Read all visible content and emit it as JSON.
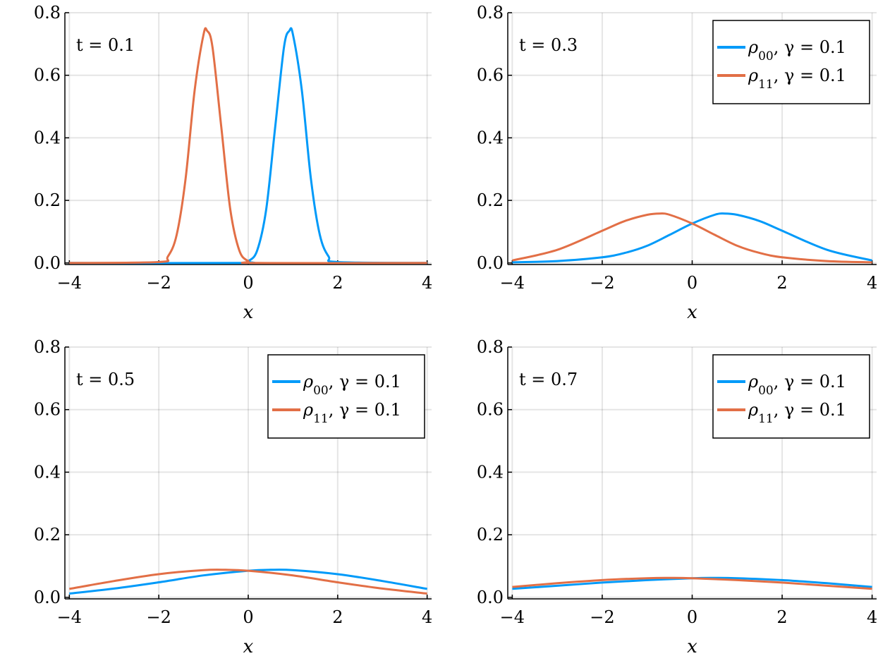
{
  "colors": {
    "rho00": "#009af9",
    "rho11": "#e26f46"
  },
  "chart_data": [
    {
      "type": "line",
      "annotation": "t = 0.1",
      "xlabel": "x",
      "xlim": [
        -4.1,
        4.1
      ],
      "ylim": [
        -0.005,
        0.8
      ],
      "xticks": [
        -4,
        -2,
        0,
        2,
        4
      ],
      "yticks": [
        0.0,
        0.2,
        0.4,
        0.6,
        0.8
      ],
      "xtick_labels": [
        "−4",
        "−2",
        "0",
        "2",
        "4"
      ],
      "ytick_labels": [
        "0.0",
        "0.2",
        "0.4",
        "0.6",
        "0.8"
      ],
      "grid": true,
      "legend": null,
      "series": [
        {
          "color": "#009af9",
          "x": [
            -4.0,
            -0.2,
            0.0,
            0.2,
            0.4,
            0.6,
            0.8,
            0.92,
            1.0,
            1.2,
            1.4,
            1.6,
            1.8,
            2.0,
            4.0
          ],
          "y": [
            0.0,
            0.0,
            0.006,
            0.04,
            0.17,
            0.43,
            0.69,
            0.742,
            0.73,
            0.55,
            0.27,
            0.09,
            0.02,
            0.003,
            0.0
          ]
        },
        {
          "color": "#e26f46",
          "x": [
            -4.0,
            -2.0,
            -1.8,
            -1.6,
            -1.4,
            -1.2,
            -1.0,
            -0.92,
            -0.8,
            -0.6,
            -0.4,
            -0.2,
            0.0,
            0.2,
            4.0
          ],
          "y": [
            0.0,
            0.003,
            0.02,
            0.09,
            0.27,
            0.55,
            0.73,
            0.742,
            0.69,
            0.43,
            0.17,
            0.04,
            0.006,
            0.0,
            0.0
          ]
        }
      ]
    },
    {
      "type": "line",
      "annotation": "t = 0.3",
      "xlabel": "x",
      "xlim": [
        -4.1,
        4.1
      ],
      "ylim": [
        -0.005,
        0.8
      ],
      "xticks": [
        -4,
        -2,
        0,
        2,
        4
      ],
      "yticks": [
        0.0,
        0.2,
        0.4,
        0.6,
        0.8
      ],
      "xtick_labels": [
        "−4",
        "−2",
        "0",
        "2",
        "4"
      ],
      "ytick_labels": [
        "0.0",
        "0.2",
        "0.4",
        "0.6",
        "0.8"
      ],
      "grid": true,
      "legend": "top-right",
      "series": [
        {
          "name": "ρ00, γ = 0.1",
          "color": "#009af9",
          "x": [
            -4.0,
            -3.0,
            -2.0,
            -1.5,
            -1.0,
            -0.5,
            0.0,
            0.5,
            0.72,
            1.0,
            1.5,
            2.0,
            3.0,
            4.0
          ],
          "y": [
            0.002,
            0.006,
            0.018,
            0.032,
            0.055,
            0.09,
            0.126,
            0.154,
            0.158,
            0.154,
            0.134,
            0.103,
            0.042,
            0.008
          ]
        },
        {
          "name": "ρ11, γ = 0.1",
          "color": "#e26f46",
          "x": [
            -4.0,
            -3.0,
            -2.0,
            -1.5,
            -1.0,
            -0.72,
            -0.5,
            0.0,
            0.5,
            1.0,
            1.5,
            2.0,
            3.0,
            4.0
          ],
          "y": [
            0.008,
            0.042,
            0.103,
            0.134,
            0.154,
            0.158,
            0.154,
            0.126,
            0.09,
            0.055,
            0.032,
            0.018,
            0.006,
            0.002
          ]
        }
      ]
    },
    {
      "type": "line",
      "annotation": "t = 0.5",
      "xlabel": "x",
      "xlim": [
        -4.1,
        4.1
      ],
      "ylim": [
        -0.005,
        0.8
      ],
      "xticks": [
        -4,
        -2,
        0,
        2,
        4
      ],
      "yticks": [
        0.0,
        0.2,
        0.4,
        0.6,
        0.8
      ],
      "xtick_labels": [
        "−4",
        "−2",
        "0",
        "2",
        "4"
      ],
      "ytick_labels": [
        "0.0",
        "0.2",
        "0.4",
        "0.6",
        "0.8"
      ],
      "grid": true,
      "legend": "top-right",
      "series": [
        {
          "name": "ρ00, γ = 0.1",
          "color": "#009af9",
          "x": [
            -4.0,
            -3.0,
            -2.0,
            -1.0,
            0.0,
            0.5,
            1.0,
            2.0,
            3.0,
            4.0
          ],
          "y": [
            0.012,
            0.028,
            0.048,
            0.07,
            0.085,
            0.088,
            0.087,
            0.074,
            0.052,
            0.027
          ]
        },
        {
          "name": "ρ11, γ = 0.1",
          "color": "#e26f46",
          "x": [
            -4.0,
            -3.0,
            -2.0,
            -1.0,
            -0.5,
            0.0,
            1.0,
            2.0,
            3.0,
            4.0
          ],
          "y": [
            0.027,
            0.052,
            0.074,
            0.087,
            0.088,
            0.085,
            0.07,
            0.048,
            0.028,
            0.012
          ]
        }
      ]
    },
    {
      "type": "line",
      "annotation": "t = 0.7",
      "xlabel": "x",
      "xlim": [
        -4.1,
        4.1
      ],
      "ylim": [
        -0.005,
        0.8
      ],
      "xticks": [
        -4,
        -2,
        0,
        2,
        4
      ],
      "yticks": [
        0.0,
        0.2,
        0.4,
        0.6,
        0.8
      ],
      "xtick_labels": [
        "−4",
        "−2",
        "0",
        "2",
        "4"
      ],
      "ytick_labels": [
        "0.0",
        "0.2",
        "0.4",
        "0.6",
        "0.8"
      ],
      "grid": true,
      "legend": "top-right",
      "series": [
        {
          "name": "ρ00, γ = 0.1",
          "color": "#009af9",
          "x": [
            -4.0,
            -3.0,
            -2.0,
            -1.0,
            0.0,
            0.5,
            1.0,
            2.0,
            3.0,
            4.0
          ],
          "y": [
            0.027,
            0.037,
            0.047,
            0.055,
            0.061,
            0.062,
            0.061,
            0.055,
            0.045,
            0.033
          ]
        },
        {
          "name": "ρ11, γ = 0.1",
          "color": "#e26f46",
          "x": [
            -4.0,
            -3.0,
            -2.0,
            -1.0,
            -0.5,
            0.0,
            1.0,
            2.0,
            3.0,
            4.0
          ],
          "y": [
            0.033,
            0.045,
            0.055,
            0.061,
            0.062,
            0.061,
            0.055,
            0.047,
            0.037,
            0.027
          ]
        }
      ]
    }
  ]
}
